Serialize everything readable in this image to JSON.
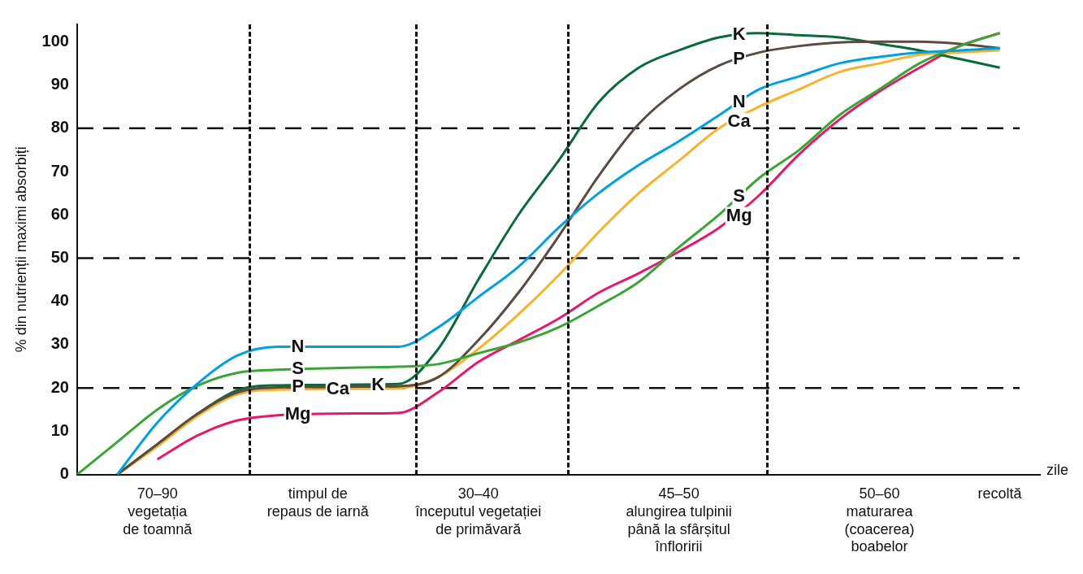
{
  "chart_data": {
    "type": "line",
    "xlabel": "zile",
    "ylabel": "% din nutrienții maximi absorbiți",
    "categories": [
      null,
      null,
      "70–90\nvegetația\nde toamnă",
      null,
      null,
      null,
      "timpul de\nrepaus de iarnă",
      null,
      null,
      null,
      "30–40\nînceputul vegetației\nde primăvară",
      null,
      null,
      null,
      null,
      "45–50\nalungirea tulpinii\npână la sfârșitul\nînfloririi",
      null,
      null,
      null,
      null,
      "50–60\nmaturarea\n(coacerea)\nboabelor",
      null,
      null,
      "recoltă",
      null
    ],
    "series": [
      {
        "name": "N",
        "color": "#00a0e0",
        "values": [
          null,
          0,
          12,
          21,
          27.5,
          29.5,
          29.5,
          29.5,
          29.5,
          34,
          41,
          48,
          57,
          65,
          71.5,
          77,
          83,
          89,
          92,
          95,
          96.5,
          97.5,
          98,
          98.5,
          null
        ]
      },
      {
        "name": "S",
        "color": "#3aa535",
        "values": [
          0,
          7.5,
          15,
          20.5,
          23.5,
          24.2,
          24.5,
          24.7,
          24.9,
          25.5,
          28,
          30.5,
          34,
          39,
          44.5,
          52.5,
          60,
          68.5,
          75,
          83,
          89,
          95,
          99,
          102,
          null
        ]
      },
      {
        "name": "P",
        "color": "#5b4a3f",
        "values": [
          null,
          0,
          7,
          14,
          19,
          20.1,
          20.2,
          20.3,
          20.4,
          22.5,
          31,
          42,
          55,
          69,
          81,
          89,
          94.5,
          97.5,
          99,
          99.8,
          100,
          100,
          99.5,
          98.5,
          null
        ]
      },
      {
        "name": "Ca",
        "color": "#f7b22e",
        "values": [
          null,
          0,
          6.5,
          13.5,
          18.5,
          19.6,
          19.7,
          19.8,
          19.9,
          22.5,
          29,
          37,
          46,
          56,
          65,
          72.5,
          80,
          85,
          89,
          93,
          95,
          97,
          97.5,
          98,
          null
        ]
      },
      {
        "name": "K",
        "color": "#0a6b3a",
        "values": [
          null,
          0,
          7,
          14,
          19.5,
          20.6,
          20.7,
          20.8,
          20.9,
          29,
          45,
          60,
          72.5,
          86,
          94,
          98,
          101,
          102,
          101.5,
          101,
          99.5,
          98,
          96,
          94,
          null
        ]
      },
      {
        "name": "Mg",
        "color": "#e5176f",
        "values": [
          null,
          null,
          3.5,
          9,
          12.5,
          13.7,
          14,
          14.1,
          14.2,
          19,
          26,
          31,
          36,
          42,
          46.5,
          51.5,
          57,
          64.5,
          74,
          82,
          88.5,
          94,
          99,
          102,
          null
        ]
      }
    ],
    "ylim": [
      0,
      104
    ],
    "yticks": [
      0,
      10,
      20,
      30,
      40,
      50,
      60,
      70,
      80,
      90,
      100
    ],
    "ref_lines": [
      {
        "axis": "y",
        "value": 20
      },
      {
        "axis": "y",
        "value": 50
      },
      {
        "axis": "y",
        "value": 80
      }
    ]
  }
}
